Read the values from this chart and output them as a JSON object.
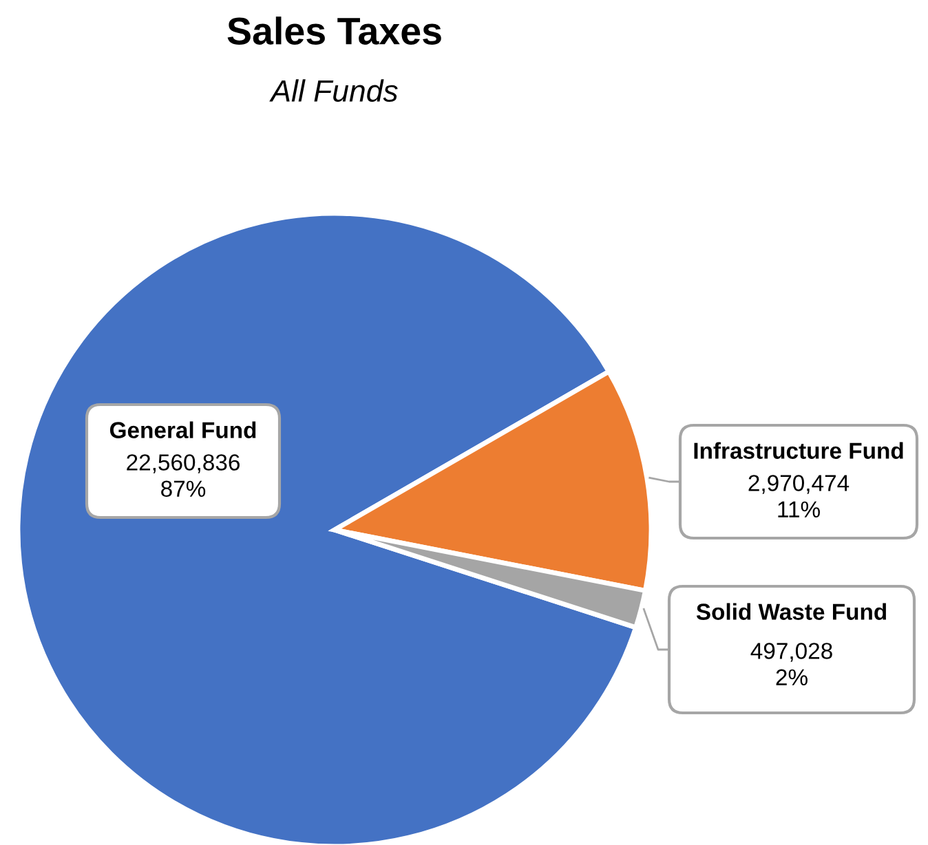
{
  "chart_data": {
    "type": "pie",
    "title": "Sales Taxes",
    "subtitle": "All Funds",
    "categories": [
      "General Fund",
      "Infrastructure Fund",
      "Solid Waste Fund"
    ],
    "values": [
      22560836,
      2970474,
      497028
    ],
    "colors": [
      "#4472c4",
      "#ed7d31",
      "#a5a5a5"
    ],
    "value_labels": [
      "22,560,836\n87%",
      "2,970,474\n11%",
      "497,028\n2%"
    ],
    "legend": false
  }
}
